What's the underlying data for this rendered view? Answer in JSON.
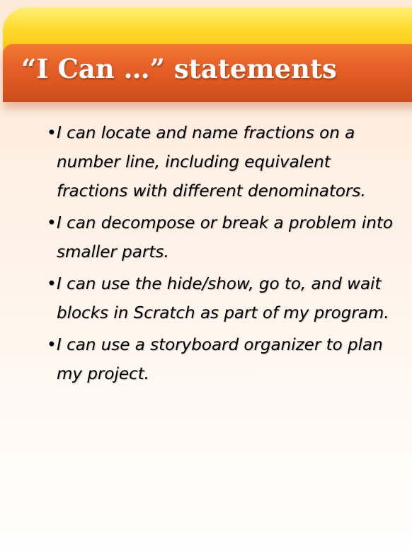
{
  "title": "“I Can …” statements",
  "bullet_symbol": "•",
  "statements": [
    "I can locate and name fractions on a number line, including equivalent fractions with different denominators.",
    "I can decompose or break a problem into smaller parts.",
    "I can use the hide/show, go to, and wait blocks in Scratch as part of my program.",
    "I can use a storyboard organizer to plan my project."
  ],
  "colors": {
    "title_bar": "#e05a22",
    "top_band": "#ffd92b",
    "background": "#fef1e6",
    "title_text": "#ffffff",
    "body_text": "#000000"
  }
}
